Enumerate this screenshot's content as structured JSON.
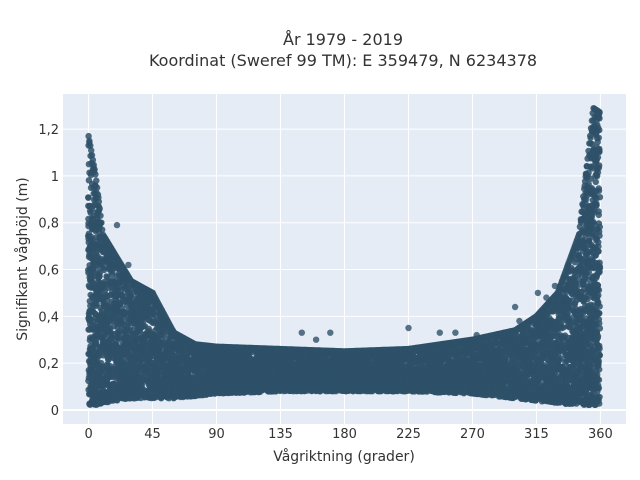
{
  "chart_data": {
    "type": "scatter",
    "title_line1": "År 1979 - 2019",
    "title_line2": "Koordinat (Sweref 99 TM): E 359479, N 6234378",
    "xlabel": "Vågriktning (grader)",
    "ylabel": "Signifikant våghöjd (m)",
    "xlim": [
      -18,
      378
    ],
    "ylim": [
      -0.06,
      1.35
    ],
    "x_ticks": [
      0,
      45,
      90,
      135,
      180,
      225,
      270,
      315,
      360
    ],
    "x_tick_labels": [
      "0",
      "45",
      "90",
      "135",
      "180",
      "225",
      "270",
      "315",
      "360"
    ],
    "y_ticks": [
      0,
      0.2,
      0.4,
      0.6,
      0.8,
      1,
      1.2
    ],
    "y_tick_labels": [
      "0",
      "0,2",
      "0,4",
      "0,6",
      "0,8",
      "1",
      "1,2"
    ],
    "grid": true,
    "marker_color": "#2e5168",
    "plot_background": "#e5ecf6",
    "envelope": {
      "description": "dense point cloud; upper bound of significant wave height per direction",
      "x": [
        0,
        5,
        10,
        20,
        30,
        45,
        60,
        75,
        90,
        135,
        180,
        225,
        270,
        300,
        315,
        330,
        345,
        355,
        360
      ],
      "y_max": [
        1.17,
        1.0,
        0.75,
        0.65,
        0.55,
        0.5,
        0.33,
        0.28,
        0.27,
        0.26,
        0.25,
        0.26,
        0.3,
        0.34,
        0.4,
        0.5,
        0.75,
        1.29,
        1.27
      ],
      "y_min": [
        0.02,
        0.02,
        0.03,
        0.04,
        0.05,
        0.05,
        0.05,
        0.06,
        0.07,
        0.08,
        0.08,
        0.08,
        0.07,
        0.05,
        0.04,
        0.03,
        0.02,
        0.02,
        0.02
      ]
    },
    "outliers": [
      {
        "x": 20,
        "y": 0.79
      },
      {
        "x": 28,
        "y": 0.62
      },
      {
        "x": 45,
        "y": 0.5
      },
      {
        "x": 150,
        "y": 0.33
      },
      {
        "x": 160,
        "y": 0.3
      },
      {
        "x": 170,
        "y": 0.33
      },
      {
        "x": 225,
        "y": 0.35
      },
      {
        "x": 247,
        "y": 0.33
      },
      {
        "x": 258,
        "y": 0.33
      },
      {
        "x": 273,
        "y": 0.32
      },
      {
        "x": 300,
        "y": 0.44
      },
      {
        "x": 303,
        "y": 0.38
      },
      {
        "x": 316,
        "y": 0.5
      },
      {
        "x": 322,
        "y": 0.48
      },
      {
        "x": 328,
        "y": 0.53
      },
      {
        "x": 338,
        "y": 0.6
      },
      {
        "x": 350,
        "y": 0.9
      }
    ]
  }
}
